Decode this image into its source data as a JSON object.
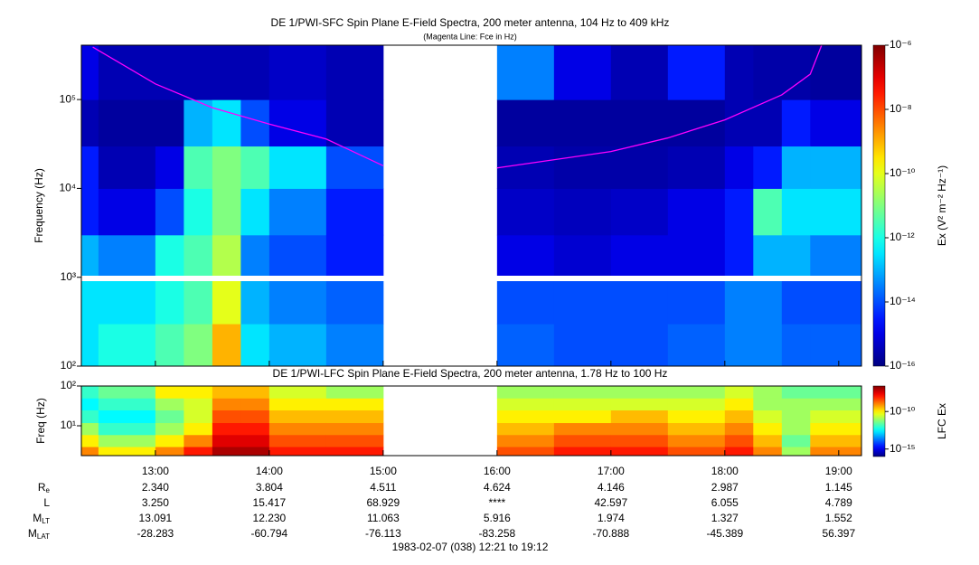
{
  "chart_data": [
    {
      "type": "heatmap",
      "title": "DE 1/PWI-SFC  Spin Plane E-Field Spectra, 200 meter antenna, 104 Hz to 409 kHz",
      "subtitle": "(Magenta Line: Fce in Hz)",
      "y_label": "Frequency (Hz)",
      "colorbar_label": "Ex (V² m⁻² Hz⁻¹)",
      "log": true,
      "xlim": [
        12.35,
        19.2
      ],
      "xticks": [
        {
          "value": 13,
          "label": "13:00"
        },
        {
          "value": 14,
          "label": "14:00"
        },
        {
          "value": 15,
          "label": "15:00"
        },
        {
          "value": 16,
          "label": "16:00"
        },
        {
          "value": 17,
          "label": "17:00"
        },
        {
          "value": 18,
          "label": "18:00"
        },
        {
          "value": 19,
          "label": "19:00"
        }
      ],
      "ylim": [
        100,
        409000
      ],
      "yticks": [
        {
          "value": 100,
          "label": "10²"
        },
        {
          "value": 1000,
          "label": "10³"
        },
        {
          "value": 10000,
          "label": "10⁴"
        },
        {
          "value": 100000,
          "label": "10⁵"
        }
      ],
      "zlim": [
        -16,
        -6
      ],
      "zticks": [
        {
          "value": -16,
          "label": "10⁻¹⁶"
        },
        {
          "value": -14,
          "label": "10⁻¹⁴"
        },
        {
          "value": -12,
          "label": "10⁻¹²"
        },
        {
          "value": -10,
          "label": "10⁻¹⁰"
        },
        {
          "value": -8,
          "label": "10⁻⁸"
        },
        {
          "value": -6,
          "label": "10⁻⁶"
        }
      ],
      "x_edges": [
        12.35,
        12.5,
        13,
        13.25,
        13.5,
        13.75,
        14,
        14.5,
        15,
        16,
        16.5,
        17,
        17.5,
        18,
        18.25,
        18.5,
        18.75,
        19.2
      ],
      "y_edges": [
        100,
        300,
        1000,
        3000,
        10000,
        30000,
        100000,
        409000
      ],
      "z": [
        [
          -12.5,
          -12.5,
          -13,
          -14.5,
          -14.5,
          -15.5,
          -15
        ],
        [
          -12,
          -12.5,
          -13.5,
          -15,
          -15.5,
          -15.7,
          -15.5
        ],
        [
          -11.5,
          -12,
          -12,
          -14,
          -15,
          -15.7,
          -15.5
        ],
        [
          -11,
          -11.5,
          -11.5,
          -12,
          -11.5,
          -13,
          -15.5
        ],
        [
          -9,
          -10,
          -10.5,
          -11,
          -11,
          -12.5,
          -15.5
        ],
        [
          -12.5,
          -13,
          -13.5,
          -12.5,
          -11.5,
          -14,
          -15.5
        ],
        [
          -13,
          -13.5,
          -14,
          -13.5,
          -12.5,
          -15,
          -15.3
        ],
        [
          -13.5,
          -13.8,
          -14.5,
          -14.5,
          -14,
          -15.5,
          -15.5
        ],
        [
          null,
          null,
          null,
          null,
          null,
          null,
          null
        ],
        [
          -13.8,
          -14,
          -15,
          -15.3,
          -15.5,
          -15.7,
          -13.5
        ],
        [
          -14,
          -14,
          -15.2,
          -15.4,
          -15.6,
          -15.7,
          -15
        ],
        [
          -14,
          -14,
          -15,
          -15.3,
          -15.6,
          -15.7,
          -15.5
        ],
        [
          -13.8,
          -14,
          -15,
          -15,
          -15.5,
          -15.7,
          -14.5
        ],
        [
          -13.5,
          -13.5,
          -14.5,
          -14.5,
          -15,
          -15.5,
          -15.5
        ],
        [
          -13.5,
          -13.5,
          -13,
          -11.5,
          -14.5,
          -15.5,
          -15.6
        ],
        [
          -13.8,
          -14,
          -13,
          -12.5,
          -13,
          -14.5,
          -15.6
        ],
        [
          -13.8,
          -14,
          -13.5,
          -12.5,
          -13,
          -15,
          -15.7
        ]
      ],
      "series": [
        {
          "color": "#ff00ff",
          "x": [
            12.45,
            13,
            13.5,
            14,
            14.5,
            15,
            15.5,
            16,
            17,
            17.5,
            18,
            18.5,
            18.75,
            18.85
          ],
          "values": [
            390000,
            150000,
            81000,
            53000,
            36000,
            18000,
            null,
            17000,
            26000,
            37000,
            59000,
            113000,
            193000,
            409000
          ]
        }
      ]
    },
    {
      "type": "heatmap",
      "title": "DE 1/PWI-LFC  Spin Plane E-Field Spectra, 200 meter antenna, 1.78 Hz to 100 Hz",
      "y_label": "Freq (Hz)",
      "colorbar_label": "LFC Ex",
      "log": true,
      "xlim": [
        12.35,
        19.2
      ],
      "xticks": [
        {
          "value": 13,
          "label": "13:00"
        },
        {
          "value": 14,
          "label": "14:00"
        },
        {
          "value": 15,
          "label": "15:00"
        },
        {
          "value": 16,
          "label": "16:00"
        },
        {
          "value": 17,
          "label": "17:00"
        },
        {
          "value": 18,
          "label": "18:00"
        },
        {
          "value": 19,
          "label": "19:00"
        }
      ],
      "ylim": [
        1.78,
        100
      ],
      "yticks": [
        {
          "value": 10,
          "label": "10¹"
        },
        {
          "value": 100,
          "label": "10²"
        }
      ],
      "zlim": [
        -16,
        -6.6
      ],
      "zticks": [
        {
          "value": -15,
          "label": "10⁻¹⁵"
        },
        {
          "value": -10,
          "label": "10⁻¹⁰"
        }
      ],
      "x_edges": [
        12.35,
        12.5,
        13,
        13.25,
        13.5,
        13.75,
        14,
        14.5,
        15,
        16,
        16.5,
        17,
        17.5,
        18,
        18.25,
        18.5,
        18.75,
        19.2
      ],
      "y_edges": [
        1.78,
        3,
        6,
        12,
        25,
        50,
        100
      ],
      "z": [
        [
          -9,
          -10,
          -11,
          -12,
          -12.5,
          -12
        ],
        [
          -10,
          -11,
          -12,
          -12.5,
          -12,
          -11.5
        ],
        [
          -9,
          -10,
          -11,
          -11.5,
          -11,
          -10
        ],
        [
          -8,
          -9,
          -10,
          -10.5,
          -10.5,
          -10
        ],
        [
          -7,
          -7.5,
          -8,
          -8.5,
          -9,
          -9.5
        ],
        [
          -7,
          -7.5,
          -8,
          -8.5,
          -9,
          -9.5
        ],
        [
          -8,
          -8.5,
          -9,
          -9.5,
          -10,
          -10.5
        ],
        [
          -8,
          -8.5,
          -9,
          -9.5,
          -10,
          -11
        ],
        [
          null,
          null,
          null,
          null,
          null,
          null
        ],
        [
          -8.5,
          -9,
          -9.5,
          -10,
          -10.5,
          -11
        ],
        [
          -8,
          -8.5,
          -9,
          -10,
          -10.5,
          -11
        ],
        [
          -8,
          -8.5,
          -9,
          -9.5,
          -10.5,
          -11
        ],
        [
          -8.5,
          -9,
          -9.5,
          -10,
          -10.5,
          -11
        ],
        [
          -8,
          -8.5,
          -9,
          -9.5,
          -10,
          -10.5
        ],
        [
          -9,
          -9.5,
          -10,
          -10.5,
          -11,
          -11
        ],
        [
          -11,
          -11.5,
          -11,
          -11,
          -11,
          -11.5
        ],
        [
          -9,
          -9.5,
          -10,
          -10.5,
          -11,
          -11.5
        ]
      ]
    }
  ],
  "ephemeris": {
    "rows": [
      {
        "label": "R",
        "sub": "e",
        "values": [
          "2.340",
          "3.804",
          "4.511",
          "4.624",
          "4.146",
          "2.987",
          "1.145"
        ]
      },
      {
        "label": "L",
        "values": [
          "3.250",
          "15.417",
          "68.929",
          "****",
          "42.597",
          "6.055",
          "4.789"
        ]
      },
      {
        "label": "M",
        "sub": "LT",
        "values": [
          "13.091",
          "12.230",
          "11.063",
          "5.916",
          "1.974",
          "1.327",
          "1.552"
        ]
      },
      {
        "label": "M",
        "sub": "LAT",
        "values": [
          "-28.283",
          "-60.794",
          "-76.113",
          "-83.258",
          "-70.888",
          "-45.389",
          "56.397"
        ]
      }
    ]
  },
  "footer": "1983-02-07 (038) 12:21 to 19:12"
}
